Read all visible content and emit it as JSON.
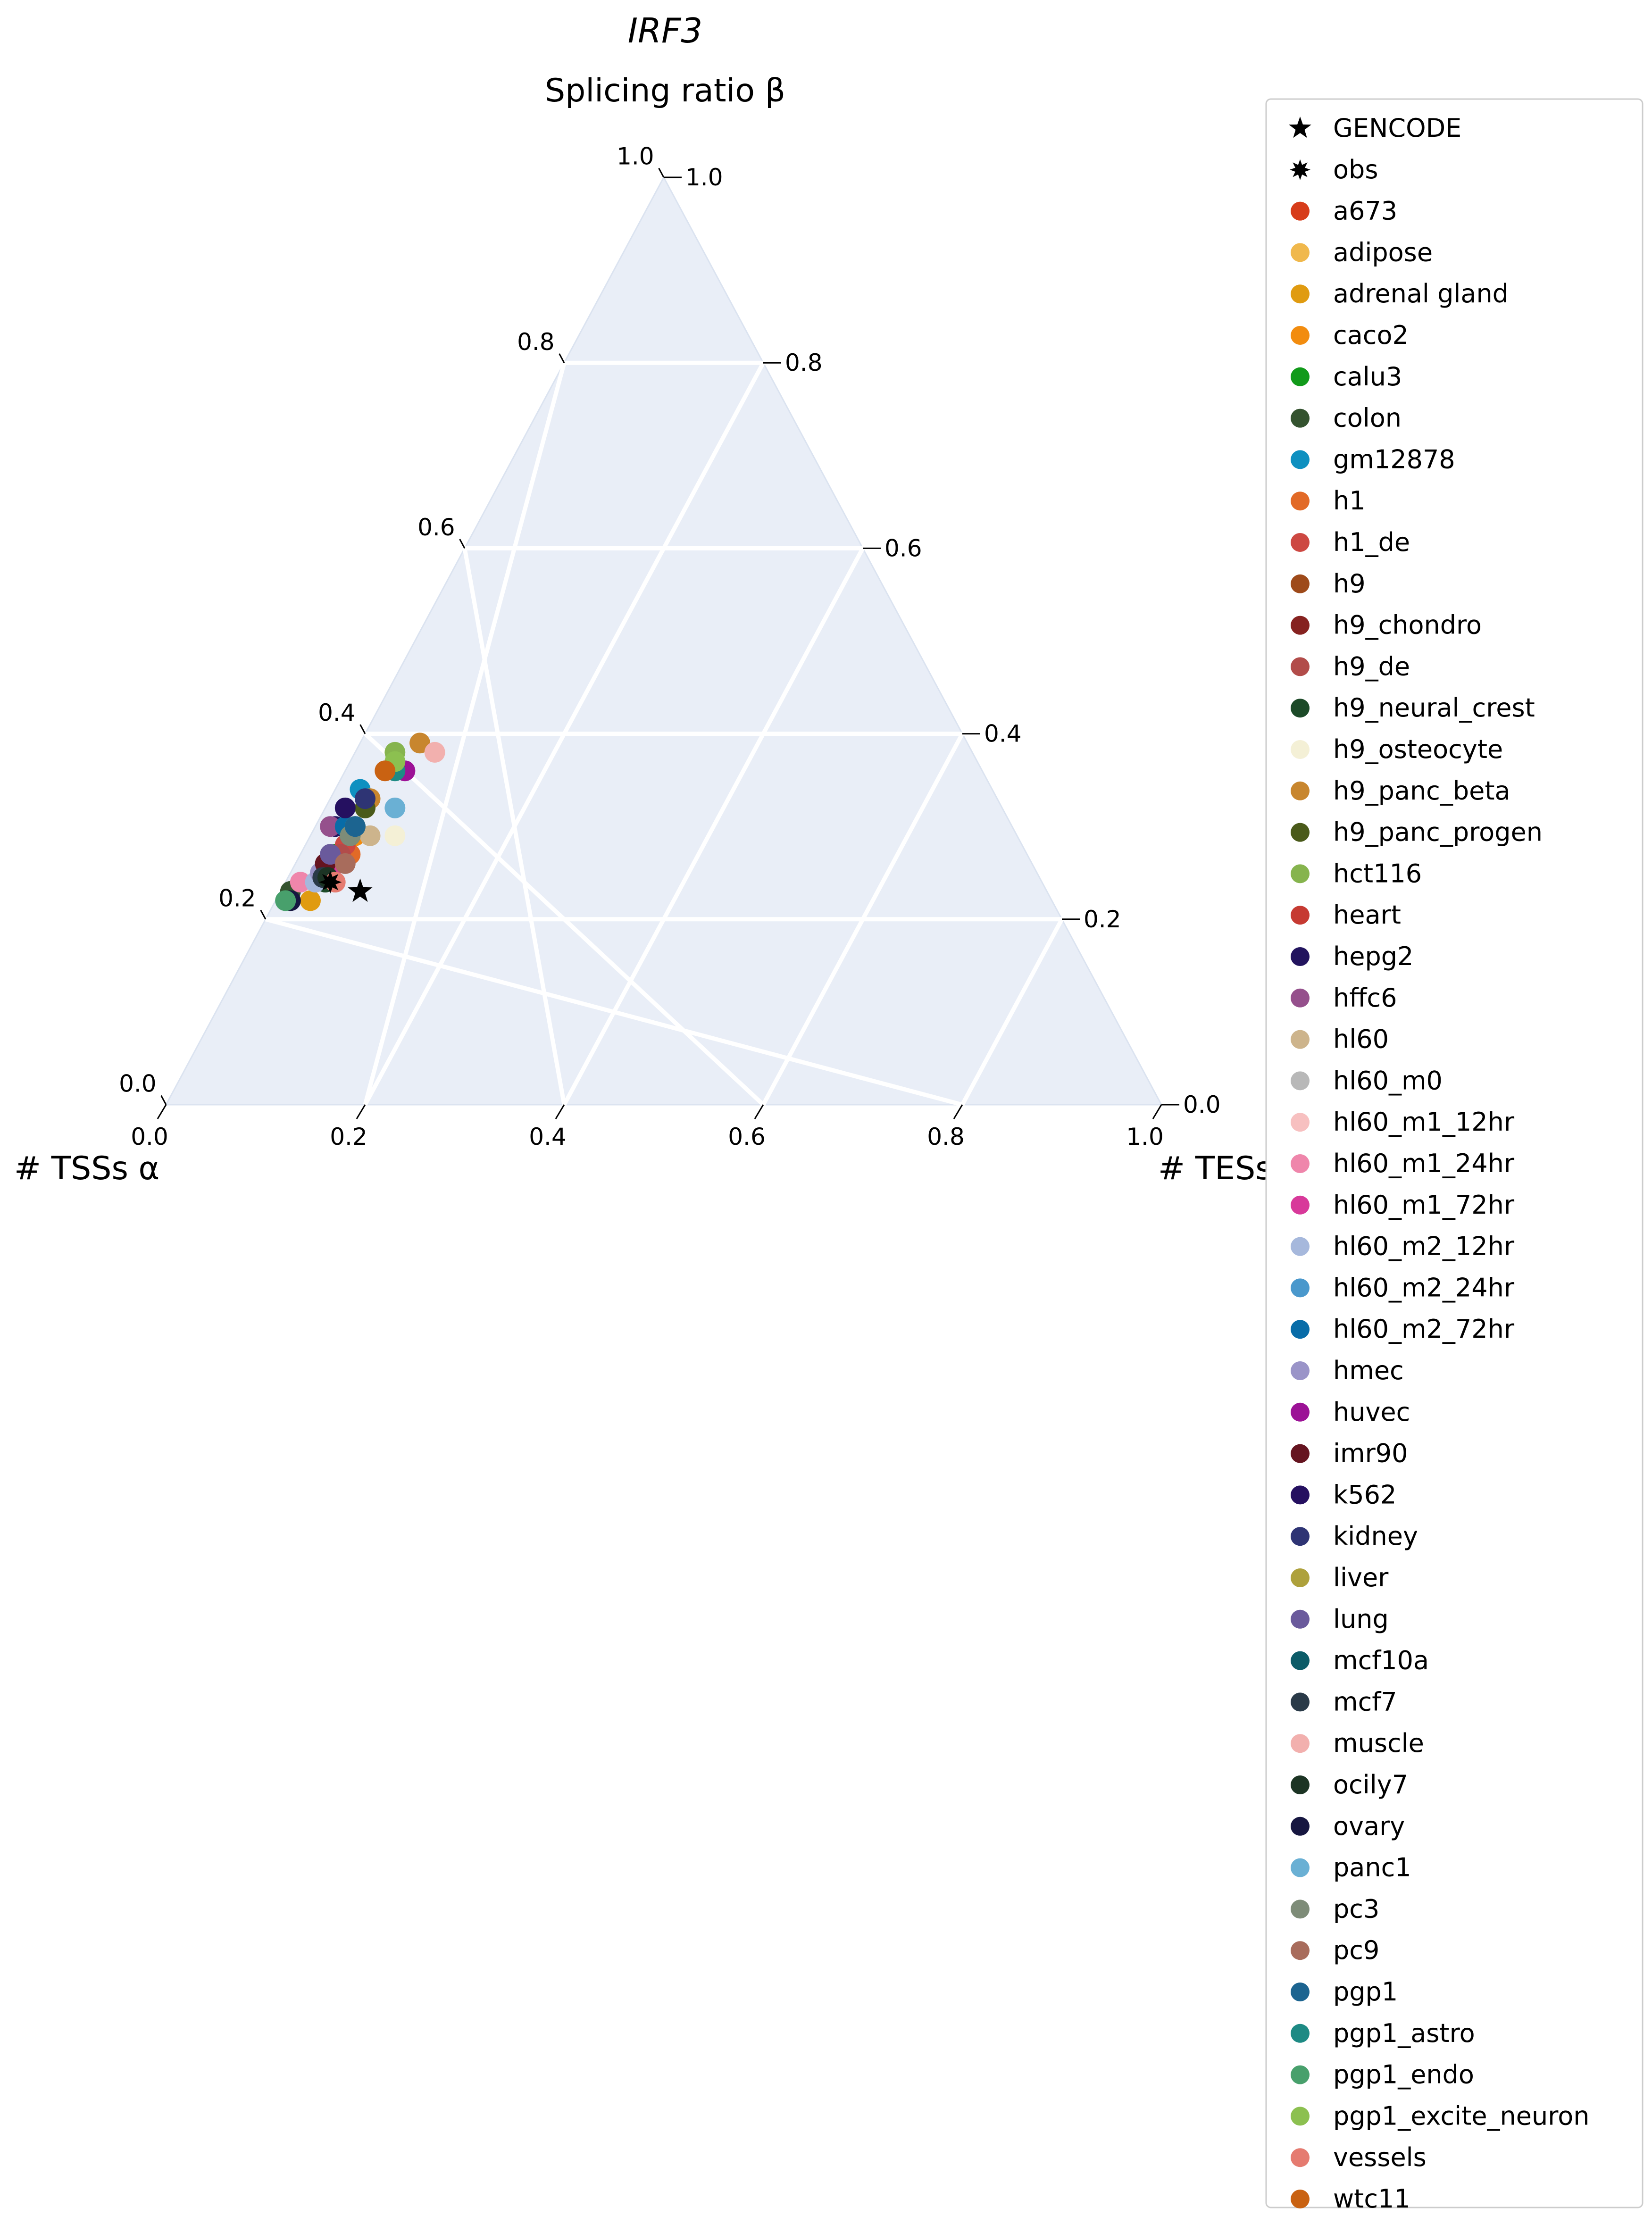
{
  "chart_data": {
    "type": "scatter",
    "subtype": "ternary",
    "title": "IRF3",
    "axes": {
      "top": {
        "label": "Splicing ratio β",
        "ticks": [
          "0.0",
          "0.2",
          "0.4",
          "0.6",
          "0.8",
          "1.0"
        ]
      },
      "left": {
        "label": "# TSSs α",
        "ticks": [
          "0.0",
          "0.2",
          "0.4",
          "0.6",
          "0.8",
          "1.0"
        ]
      },
      "right": {
        "label": "# TESs γ",
        "ticks": [
          "0.0",
          "0.2",
          "0.4",
          "0.6",
          "0.8",
          "1.0"
        ]
      },
      "range": [
        0,
        1
      ],
      "grid": true
    },
    "legend_position": "right",
    "series": [
      {
        "name": "GENCODE",
        "marker": "star",
        "color": "#000000",
        "points": [
          {
            "tss": 0.69,
            "tes": 0.08,
            "splicing": 0.23
          }
        ]
      },
      {
        "name": "obs",
        "marker": "burst",
        "color": "#000000",
        "points": [
          {
            "tss": 0.715,
            "tes": 0.045,
            "splicing": 0.24
          }
        ]
      },
      {
        "name": "a673",
        "marker": "circle",
        "color": "#d73c1a",
        "points": [
          {
            "tss": 0.695,
            "tes": 0.035,
            "splicing": 0.27
          }
        ]
      },
      {
        "name": "adipose",
        "marker": "circle",
        "color": "#f0b84c",
        "points": [
          {
            "tss": 0.64,
            "tes": 0.04,
            "splicing": 0.32
          }
        ]
      },
      {
        "name": "adrenal gland",
        "marker": "circle",
        "color": "#e09b10",
        "points": [
          {
            "tss": 0.745,
            "tes": 0.035,
            "splicing": 0.22
          }
        ]
      },
      {
        "name": "caco2",
        "marker": "circle",
        "color": "#f28c0f",
        "points": [
          {
            "tss": 0.665,
            "tes": 0.045,
            "splicing": 0.29
          }
        ]
      },
      {
        "name": "calu3",
        "marker": "circle",
        "color": "#119a1a",
        "points": [
          {
            "tss": 0.695,
            "tes": 0.035,
            "splicing": 0.27
          }
        ]
      },
      {
        "name": "colon",
        "marker": "circle",
        "color": "#34532f",
        "points": [
          {
            "tss": 0.76,
            "tes": 0.01,
            "splicing": 0.23
          }
        ]
      },
      {
        "name": "gm12878",
        "marker": "circle",
        "color": "#0e90c0",
        "points": [
          {
            "tss": 0.635,
            "tes": 0.025,
            "splicing": 0.34
          }
        ]
      },
      {
        "name": "h1",
        "marker": "circle",
        "color": "#e26a27",
        "points": [
          {
            "tss": 0.68,
            "tes": 0.05,
            "splicing": 0.27
          }
        ]
      },
      {
        "name": "h1_de",
        "marker": "circle",
        "color": "#cd4842",
        "points": [
          {
            "tss": 0.68,
            "tes": 0.04,
            "splicing": 0.28
          }
        ]
      },
      {
        "name": "h9",
        "marker": "circle",
        "color": "#9e4a1a",
        "points": [
          {
            "tss": 0.66,
            "tes": 0.04,
            "splicing": 0.3
          }
        ]
      },
      {
        "name": "h9_chondro",
        "marker": "circle",
        "color": "#862220",
        "points": [
          {
            "tss": 0.71,
            "tes": 0.04,
            "splicing": 0.25
          }
        ]
      },
      {
        "name": "h9_de",
        "marker": "circle",
        "color": "#b24c4a",
        "points": [
          {
            "tss": 0.69,
            "tes": 0.04,
            "splicing": 0.27
          }
        ]
      },
      {
        "name": "h9_neural_crest",
        "marker": "circle",
        "color": "#1c4a28",
        "points": [
          {
            "tss": 0.72,
            "tes": 0.04,
            "splicing": 0.24
          }
        ]
      },
      {
        "name": "h9_osteocyte",
        "marker": "circle",
        "color": "#f4f0d6",
        "points": [
          {
            "tss": 0.625,
            "tes": 0.085,
            "splicing": 0.29
          }
        ]
      },
      {
        "name": "h9_panc_beta",
        "marker": "circle",
        "color": "#c8862e",
        "points": [
          {
            "tss": 0.55,
            "tes": 0.06,
            "splicing": 0.39
          },
          {
            "tss": 0.63,
            "tes": 0.04,
            "splicing": 0.33
          }
        ]
      },
      {
        "name": "h9_panc_progen",
        "marker": "circle",
        "color": "#4a5a1a",
        "points": [
          {
            "tss": 0.64,
            "tes": 0.04,
            "splicing": 0.32
          }
        ]
      },
      {
        "name": "hct116",
        "marker": "circle",
        "color": "#86b44e",
        "points": [
          {
            "tss": 0.58,
            "tes": 0.04,
            "splicing": 0.38
          }
        ]
      },
      {
        "name": "heart",
        "marker": "circle",
        "color": "#c63a32",
        "points": [
          {
            "tss": 0.7,
            "tes": 0.04,
            "splicing": 0.26
          }
        ]
      },
      {
        "name": "hepg2",
        "marker": "circle",
        "color": "#22145e",
        "points": [
          {
            "tss": 0.68,
            "tes": 0.02,
            "splicing": 0.3
          }
        ]
      },
      {
        "name": "hffc6",
        "marker": "circle",
        "color": "#95508c",
        "points": [
          {
            "tss": 0.685,
            "tes": 0.015,
            "splicing": 0.3
          }
        ]
      },
      {
        "name": "hl60",
        "marker": "circle",
        "color": "#cdb48c",
        "points": [
          {
            "tss": 0.65,
            "tes": 0.06,
            "splicing": 0.29
          }
        ]
      },
      {
        "name": "hl60_m0",
        "marker": "circle",
        "color": "#b8b8b8",
        "points": [
          {
            "tss": 0.67,
            "tes": 0.04,
            "splicing": 0.29
          }
        ]
      },
      {
        "name": "hl60_m1_12hr",
        "marker": "circle",
        "color": "#f7c0c0",
        "points": [
          {
            "tss": 0.7,
            "tes": 0.04,
            "splicing": 0.26
          }
        ]
      },
      {
        "name": "hl60_m1_24hr",
        "marker": "circle",
        "color": "#ef86ab",
        "points": [
          {
            "tss": 0.745,
            "tes": 0.015,
            "splicing": 0.24
          }
        ]
      },
      {
        "name": "hl60_m1_72hr",
        "marker": "circle",
        "color": "#d8399a",
        "points": [
          {
            "tss": 0.71,
            "tes": 0.04,
            "splicing": 0.25
          }
        ]
      },
      {
        "name": "hl60_m2_12hr",
        "marker": "circle",
        "color": "#a6b8dc",
        "points": [
          {
            "tss": 0.73,
            "tes": 0.03,
            "splicing": 0.24
          }
        ]
      },
      {
        "name": "hl60_m2_24hr",
        "marker": "circle",
        "color": "#4a98cc",
        "points": [
          {
            "tss": 0.66,
            "tes": 0.04,
            "splicing": 0.3
          }
        ]
      },
      {
        "name": "hl60_m2_72hr",
        "marker": "circle",
        "color": "#086ca8",
        "points": [
          {
            "tss": 0.67,
            "tes": 0.03,
            "splicing": 0.3
          }
        ]
      },
      {
        "name": "hmec",
        "marker": "circle",
        "color": "#9a94c8",
        "points": [
          {
            "tss": 0.72,
            "tes": 0.03,
            "splicing": 0.25
          }
        ]
      },
      {
        "name": "huvec",
        "marker": "circle",
        "color": "#9c1296",
        "points": [
          {
            "tss": 0.58,
            "tes": 0.06,
            "splicing": 0.36
          }
        ]
      },
      {
        "name": "imr90",
        "marker": "circle",
        "color": "#651420",
        "points": [
          {
            "tss": 0.71,
            "tes": 0.03,
            "splicing": 0.26
          }
        ]
      },
      {
        "name": "k562",
        "marker": "circle",
        "color": "#251060",
        "points": [
          {
            "tss": 0.66,
            "tes": 0.02,
            "splicing": 0.32
          }
        ]
      },
      {
        "name": "kidney",
        "marker": "circle",
        "color": "#2e3474",
        "points": [
          {
            "tss": 0.635,
            "tes": 0.035,
            "splicing": 0.33
          }
        ]
      },
      {
        "name": "liver",
        "marker": "circle",
        "color": "#aea13c",
        "points": [
          {
            "tss": 0.66,
            "tes": 0.04,
            "splicing": 0.3
          }
        ]
      },
      {
        "name": "lung",
        "marker": "circle",
        "color": "#6a5a9c",
        "points": [
          {
            "tss": 0.7,
            "tes": 0.03,
            "splicing": 0.27
          }
        ]
      },
      {
        "name": "mcf10a",
        "marker": "circle",
        "color": "#0c5c68",
        "points": [
          {
            "tss": 0.67,
            "tes": 0.04,
            "splicing": 0.29
          }
        ]
      },
      {
        "name": "mcf7",
        "marker": "circle",
        "color": "#2a3a48",
        "points": [
          {
            "tss": 0.72,
            "tes": 0.035,
            "splicing": 0.245
          }
        ]
      },
      {
        "name": "muscle",
        "marker": "circle",
        "color": "#f2b0ae",
        "points": [
          {
            "tss": 0.54,
            "tes": 0.08,
            "splicing": 0.38
          }
        ]
      },
      {
        "name": "ocily7",
        "marker": "circle",
        "color": "#1c3424",
        "points": [
          {
            "tss": 0.715,
            "tes": 0.04,
            "splicing": 0.245
          }
        ]
      },
      {
        "name": "ovary",
        "marker": "circle",
        "color": "#161640",
        "points": [
          {
            "tss": 0.765,
            "tes": 0.015,
            "splicing": 0.22
          }
        ]
      },
      {
        "name": "panc1",
        "marker": "circle",
        "color": "#6ab0d4",
        "points": [
          {
            "tss": 0.61,
            "tes": 0.07,
            "splicing": 0.32
          }
        ]
      },
      {
        "name": "pc3",
        "marker": "circle",
        "color": "#7e8c78",
        "points": [
          {
            "tss": 0.67,
            "tes": 0.04,
            "splicing": 0.29
          }
        ]
      },
      {
        "name": "pc9",
        "marker": "circle",
        "color": "#a86c5c",
        "points": [
          {
            "tss": 0.69,
            "tes": 0.05,
            "splicing": 0.26
          }
        ]
      },
      {
        "name": "pgp1",
        "marker": "circle",
        "color": "#1c6490",
        "points": [
          {
            "tss": 0.66,
            "tes": 0.04,
            "splicing": 0.3
          }
        ]
      },
      {
        "name": "pgp1_astro",
        "marker": "circle",
        "color": "#1e8a84",
        "points": [
          {
            "tss": 0.59,
            "tes": 0.05,
            "splicing": 0.36
          }
        ]
      },
      {
        "name": "pgp1_endo",
        "marker": "circle",
        "color": "#48a06c",
        "points": [
          {
            "tss": 0.77,
            "tes": 0.01,
            "splicing": 0.22
          }
        ]
      },
      {
        "name": "pgp1_excite_neuron",
        "marker": "circle",
        "color": "#8cc050",
        "points": [
          {
            "tss": 0.585,
            "tes": 0.045,
            "splicing": 0.37
          }
        ]
      },
      {
        "name": "vessels",
        "marker": "circle",
        "color": "#e57b70",
        "points": [
          {
            "tss": 0.71,
            "tes": 0.05,
            "splicing": 0.24
          }
        ]
      },
      {
        "name": "wtc11",
        "marker": "circle",
        "color": "#c96212",
        "points": [
          {
            "tss": 0.6,
            "tes": 0.04,
            "splicing": 0.36
          }
        ]
      }
    ]
  }
}
